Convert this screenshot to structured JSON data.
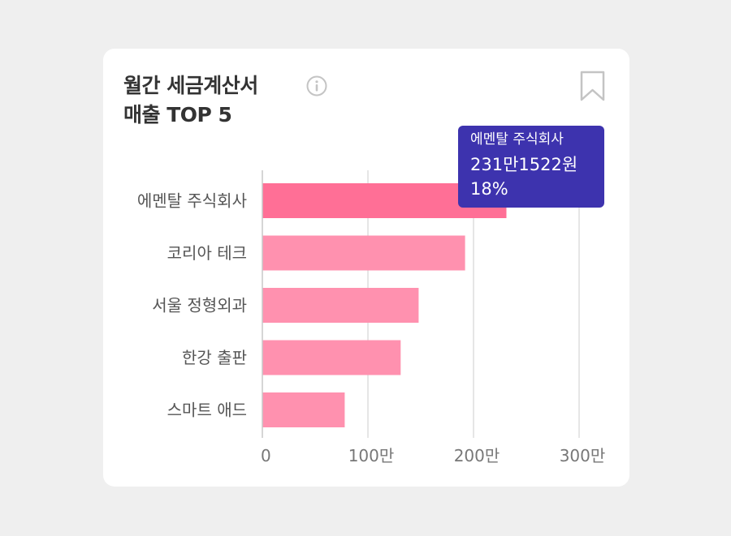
{
  "card": {
    "title_line1": "월간 세금계산서",
    "title_line2": "매출 TOP 5",
    "info_icon": "info-circle-icon",
    "bookmark_icon": "bookmark-icon"
  },
  "tooltip": {
    "name": "에멘탈 주식회사",
    "value": "231만1522원",
    "percent": "18%"
  },
  "colors": {
    "highlight_bar": "#ff6f96",
    "bar": "#ff91af",
    "grid": "#dddddd",
    "tooltip_bg": "#3d33ae"
  },
  "chart_data": {
    "type": "bar",
    "orientation": "horizontal",
    "title": "월간 세금계산서 매출 TOP 5",
    "categories": [
      "에멘탈 주식회사",
      "코리아 테크",
      "서울 정형외과",
      "한강 출판",
      "스마트 애드"
    ],
    "values": [
      2311522,
      1920000,
      1480000,
      1310000,
      780000
    ],
    "xlim": [
      0,
      3000000
    ],
    "xticks": [
      0,
      1000000,
      2000000,
      3000000
    ],
    "xtick_labels": [
      "0",
      "100만",
      "200만",
      "300만"
    ],
    "grid": true,
    "highlighted_index": 0
  }
}
